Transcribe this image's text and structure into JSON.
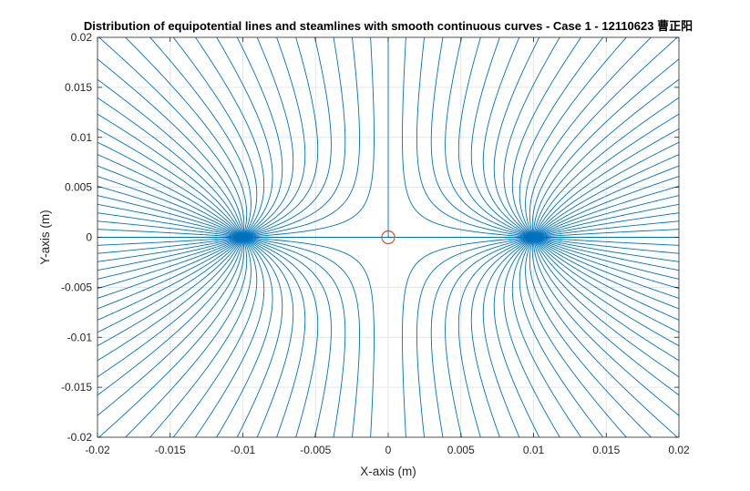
{
  "chart_data": {
    "type": "line",
    "title": "Distribution of equipotential lines and steamlines with smooth continuous curves - Case 1 - 12110623 曹正阳",
    "xlabel": "X-axis (m)",
    "ylabel": "Y-axis (m)",
    "xlim": [
      -0.02,
      0.02
    ],
    "ylim": [
      -0.02,
      0.02
    ],
    "xticks": [
      -0.02,
      -0.015,
      -0.01,
      -0.005,
      0,
      0.005,
      0.01,
      0.015,
      0.02
    ],
    "xtick_labels": [
      "-0.02",
      "-0.015",
      "-0.01",
      "-0.005",
      "0",
      "0.005",
      "0.01",
      "0.015",
      "0.02"
    ],
    "yticks": [
      -0.02,
      -0.015,
      -0.01,
      -0.005,
      0,
      0.005,
      0.01,
      0.015,
      0.02
    ],
    "ytick_labels": [
      "-0.02",
      "-0.015",
      "-0.01",
      "-0.005",
      "0",
      "0.005",
      "0.01",
      "0.015",
      "0.02"
    ],
    "grid": true,
    "line_color": "#0072bd",
    "marker_color": "#d95319",
    "field": {
      "sources": [
        {
          "x": -0.01,
          "y": 0,
          "strength": 1
        },
        {
          "x": 0.01,
          "y": 0,
          "strength": 1
        }
      ],
      "description": "Streamlines of two equal point sources on the x-axis",
      "streamline_angles_deg": [
        0,
        6,
        12,
        18,
        24,
        30,
        36,
        42,
        48,
        54,
        60,
        66,
        72,
        78,
        84,
        90,
        96,
        102,
        108,
        114,
        120,
        126,
        132,
        138,
        144,
        150,
        156,
        162,
        168,
        174,
        180,
        186,
        192,
        198,
        204,
        210,
        216,
        222,
        228,
        234,
        240,
        246,
        252,
        258,
        264,
        270,
        276,
        282,
        288,
        294,
        300,
        306,
        312,
        318,
        324,
        330,
        336,
        342,
        348,
        354
      ]
    },
    "stagnation_point": {
      "x": 0,
      "y": 0,
      "marker": "circle"
    }
  }
}
